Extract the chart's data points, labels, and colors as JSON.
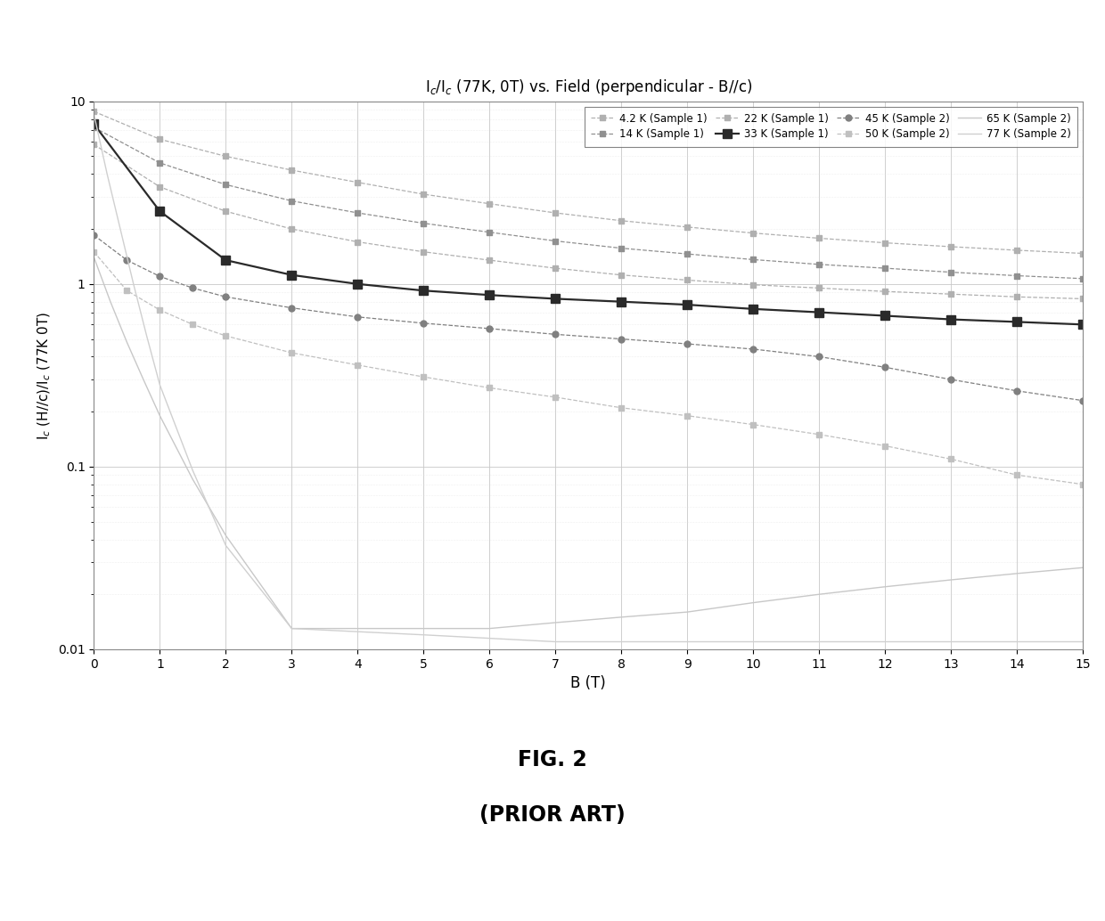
{
  "title": "Iₑ/Iₑ (77K, 0T) vs. Field (perpendicular - B//c)",
  "xlabel": "B (T)",
  "ylabel": "Iₑ (H//c)/Iₑ (77K 0T)",
  "xlim": [
    0,
    15
  ],
  "ylim": [
    0.01,
    10
  ],
  "xticks": [
    0,
    1,
    2,
    3,
    4,
    5,
    6,
    7,
    8,
    9,
    10,
    11,
    12,
    13,
    14,
    15
  ],
  "series": [
    {
      "label": "4.2 K (Sample 1)",
      "color": "#b0b0b0",
      "marker": "s",
      "markersize": 5,
      "linestyle": "--",
      "linewidth": 0.9,
      "x": [
        0,
        1,
        2,
        3,
        4,
        5,
        6,
        7,
        8,
        9,
        10,
        11,
        12,
        13,
        14,
        15
      ],
      "y": [
        8.8,
        6.2,
        5.0,
        4.2,
        3.6,
        3.1,
        2.75,
        2.45,
        2.22,
        2.05,
        1.9,
        1.78,
        1.68,
        1.6,
        1.53,
        1.47
      ]
    },
    {
      "label": "14 K (Sample 1)",
      "color": "#909090",
      "marker": "s",
      "markersize": 5,
      "linestyle": "--",
      "linewidth": 0.9,
      "x": [
        0,
        1,
        2,
        3,
        4,
        5,
        6,
        7,
        8,
        9,
        10,
        11,
        12,
        13,
        14,
        15
      ],
      "y": [
        7.2,
        4.6,
        3.5,
        2.85,
        2.45,
        2.15,
        1.92,
        1.72,
        1.57,
        1.46,
        1.36,
        1.28,
        1.22,
        1.16,
        1.11,
        1.07
      ]
    },
    {
      "label": "22 K (Sample 1)",
      "color": "#b0b0b0",
      "marker": "s",
      "markersize": 5,
      "linestyle": "--",
      "linewidth": 0.9,
      "x": [
        0,
        1,
        2,
        3,
        4,
        5,
        6,
        7,
        8,
        9,
        10,
        11,
        12,
        13,
        14,
        15
      ],
      "y": [
        5.8,
        3.4,
        2.5,
        2.0,
        1.7,
        1.5,
        1.35,
        1.22,
        1.12,
        1.05,
        0.99,
        0.95,
        0.91,
        0.88,
        0.85,
        0.83
      ]
    },
    {
      "label": "33 K (Sample 1)",
      "color": "#2a2a2a",
      "marker": "s",
      "markersize": 7,
      "linestyle": "-",
      "linewidth": 1.6,
      "x": [
        0,
        1,
        2,
        3,
        4,
        5,
        6,
        7,
        8,
        9,
        10,
        11,
        12,
        13,
        14,
        15
      ],
      "y": [
        7.5,
        2.5,
        1.35,
        1.12,
        1.0,
        0.92,
        0.87,
        0.83,
        0.8,
        0.77,
        0.73,
        0.7,
        0.67,
        0.64,
        0.62,
        0.6
      ]
    },
    {
      "label": "45 K (Sample 2)",
      "color": "#808080",
      "marker": "o",
      "markersize": 5,
      "linestyle": "--",
      "linewidth": 0.9,
      "x": [
        0,
        0.5,
        1,
        1.5,
        2,
        3,
        4,
        5,
        6,
        7,
        8,
        9,
        10,
        11,
        12,
        13,
        14,
        15
      ],
      "y": [
        1.85,
        1.35,
        1.1,
        0.95,
        0.85,
        0.74,
        0.66,
        0.61,
        0.57,
        0.53,
        0.5,
        0.47,
        0.44,
        0.4,
        0.35,
        0.3,
        0.26,
        0.23
      ]
    },
    {
      "label": "50 K (Sample 2)",
      "color": "#c0c0c0",
      "marker": "s",
      "markersize": 5,
      "linestyle": "--",
      "linewidth": 0.9,
      "x": [
        0,
        0.5,
        1,
        1.5,
        2,
        3,
        4,
        5,
        6,
        7,
        8,
        9,
        10,
        11,
        12,
        13,
        14,
        15
      ],
      "y": [
        1.5,
        0.92,
        0.72,
        0.6,
        0.52,
        0.42,
        0.36,
        0.31,
        0.27,
        0.24,
        0.21,
        0.19,
        0.17,
        0.15,
        0.13,
        0.11,
        0.09,
        0.08
      ]
    },
    {
      "label": "65 K (Sample 2)",
      "color": "#c8c8c8",
      "marker": null,
      "markersize": 0,
      "linestyle": "-",
      "linewidth": 1.0,
      "x": [
        0,
        0.25,
        0.5,
        0.75,
        1,
        1.5,
        2,
        3,
        4,
        5,
        6,
        7,
        8,
        9,
        10,
        11,
        12,
        13,
        14,
        15
      ],
      "y": [
        1.4,
        0.8,
        0.48,
        0.3,
        0.19,
        0.085,
        0.042,
        0.013,
        0.013,
        0.013,
        0.013,
        0.014,
        0.015,
        0.016,
        0.018,
        0.02,
        0.022,
        0.024,
        0.026,
        0.028
      ]
    },
    {
      "label": "77 K (Sample 2)",
      "color": "#d0d0d0",
      "marker": null,
      "markersize": 0,
      "linestyle": "-",
      "linewidth": 1.0,
      "x": [
        0,
        0.2,
        0.4,
        0.6,
        0.8,
        1.0,
        1.5,
        2.0,
        3.0,
        5.0,
        7.0,
        9.0,
        11.0,
        13.0,
        15.0
      ],
      "y": [
        8.5,
        4.0,
        2.0,
        1.0,
        0.52,
        0.28,
        0.095,
        0.037,
        0.013,
        0.012,
        0.011,
        0.011,
        0.011,
        0.011,
        0.011
      ]
    }
  ],
  "fig_label": "FIG. 2",
  "fig_sublabel": "(PRIOR ART)",
  "background_color": "#ffffff",
  "grid_major_color": "#c8c8c8",
  "grid_minor_color": "#e0e0e0"
}
